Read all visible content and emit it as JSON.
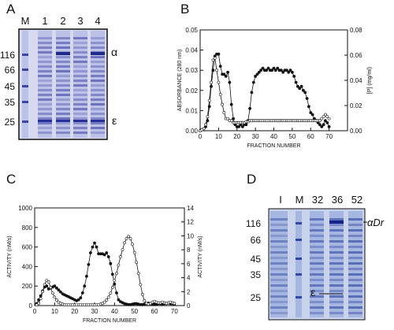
{
  "panels": {
    "A": {
      "letter": "A",
      "lanes": [
        "M",
        "1",
        "2",
        "3",
        "4"
      ],
      "markers": [
        "116",
        "66",
        "45",
        "35",
        "25"
      ],
      "bands": {
        "alpha": "α",
        "epsilon": "ε"
      }
    },
    "B": {
      "letter": "B"
    },
    "C": {
      "letter": "C"
    },
    "D": {
      "letter": "D",
      "lanes": [
        "I",
        "M",
        "32",
        "36",
        "52"
      ],
      "markers": [
        "116",
        "66",
        "45",
        "35",
        "25"
      ],
      "bands": {
        "alpha": "αDr",
        "epsilon": "ε"
      }
    }
  },
  "chart_data": [
    {
      "panel": "B",
      "type": "line",
      "xlabel": "FRACTION NUMBER",
      "ylabel": "ABSORBANCE (280 nm)",
      "ylabel2": "[P] (mg/ml)",
      "xlim": [
        0,
        80
      ],
      "xticks": [
        0,
        10,
        20,
        30,
        40,
        50,
        60,
        70
      ],
      "ylim": [
        0,
        0.05
      ],
      "yticks": [
        "0.00",
        "0.01",
        "0.02",
        "0.03",
        "0.04",
        "0.05"
      ],
      "ylim2": [
        0,
        0.08
      ],
      "yticks2": [
        "0.00",
        "0.02",
        "0.04",
        "0.06",
        "0.08"
      ],
      "series": [
        {
          "marker": "filled-circle",
          "axis": "left",
          "x": [
            0,
            1,
            2,
            3,
            4,
            5,
            6,
            7,
            8,
            9,
            10,
            11,
            12,
            13,
            14,
            15,
            16,
            17,
            18,
            19,
            20,
            21,
            22,
            23,
            24,
            25,
            26,
            27,
            28,
            29,
            30,
            31,
            32,
            33,
            34,
            35,
            36,
            37,
            38,
            39,
            40,
            41,
            42,
            43,
            44,
            45,
            46,
            47,
            48,
            49,
            50,
            51,
            52,
            53,
            54,
            55,
            56,
            57,
            58,
            59,
            60,
            61,
            62,
            63,
            64,
            65,
            66,
            67,
            68,
            69,
            70
          ],
          "y": [
            0.0,
            0.0005,
            0.001,
            0.002,
            0.005,
            0.012,
            0.022,
            0.03,
            0.037,
            0.038,
            0.038,
            0.032,
            0.028,
            0.028,
            0.027,
            0.029,
            0.024,
            0.013,
            0.006,
            0.003,
            0.002,
            0.002,
            0.003,
            0.002,
            0.003,
            0.003,
            0.005,
            0.011,
            0.019,
            0.024,
            0.027,
            0.028,
            0.029,
            0.03,
            0.031,
            0.03,
            0.03,
            0.031,
            0.03,
            0.03,
            0.031,
            0.03,
            0.031,
            0.03,
            0.03,
            0.029,
            0.03,
            0.03,
            0.029,
            0.03,
            0.029,
            0.027,
            0.024,
            0.022,
            0.021,
            0.022,
            0.02,
            0.019,
            0.016,
            0.012,
            0.009,
            0.008,
            0.006,
            0.005,
            0.004,
            0.003,
            0.002,
            0.003,
            0.005,
            0.004,
            0.002
          ]
        },
        {
          "marker": "open-circle",
          "axis": "left",
          "x": [
            0,
            1,
            2,
            3,
            4,
            5,
            6,
            7,
            8,
            9,
            10,
            11,
            12,
            13,
            14,
            15,
            16,
            17,
            18,
            19,
            20,
            21,
            22,
            23,
            24,
            25,
            26,
            27,
            28,
            29,
            30,
            31,
            32,
            33,
            34,
            35,
            36,
            37,
            38,
            39,
            40,
            41,
            42,
            43,
            44,
            45,
            46,
            47,
            48,
            49,
            50,
            51,
            52,
            53,
            54,
            55,
            56,
            57,
            58,
            59,
            60,
            61,
            62,
            63,
            64,
            65,
            66,
            67,
            68,
            69,
            70
          ],
          "y": [
            0.0,
            0.0005,
            0.001,
            0.003,
            0.007,
            0.015,
            0.024,
            0.035,
            0.036,
            0.03,
            0.024,
            0.018,
            0.013,
            0.009,
            0.006,
            0.006,
            0.005,
            0.005,
            0.004,
            0.004,
            0.004,
            0.004,
            0.004,
            0.004,
            0.004,
            0.0045,
            0.0045,
            0.005,
            0.005,
            0.005,
            0.005,
            0.005,
            0.005,
            0.005,
            0.005,
            0.005,
            0.005,
            0.005,
            0.005,
            0.005,
            0.005,
            0.005,
            0.005,
            0.005,
            0.005,
            0.005,
            0.005,
            0.005,
            0.005,
            0.005,
            0.005,
            0.005,
            0.005,
            0.005,
            0.005,
            0.005,
            0.005,
            0.005,
            0.005,
            0.005,
            0.005,
            0.005,
            0.005,
            0.005,
            0.005,
            0.005,
            0.006,
            0.007,
            0.008,
            0.007,
            0.006
          ]
        }
      ]
    },
    {
      "panel": "C",
      "type": "line",
      "xlabel": "FRACTION NUMBER",
      "ylabel": "ACTIVITY (nM/s)",
      "ylabel2": "ACTIVITY (nM/s)",
      "xlim": [
        0,
        75
      ],
      "xticks": [
        0,
        10,
        20,
        30,
        40,
        50,
        60,
        70
      ],
      "ylim": [
        0,
        1000
      ],
      "yticks": [
        "0",
        "200",
        "400",
        "600",
        "800",
        "1000"
      ],
      "ylim2": [
        0,
        14
      ],
      "yticks2": [
        "0",
        "2",
        "4",
        "6",
        "8",
        "10",
        "12",
        "14"
      ],
      "series": [
        {
          "marker": "filled-circle",
          "axis": "left",
          "x": [
            1,
            2,
            3,
            4,
            5,
            6,
            7,
            8,
            9,
            10,
            11,
            12,
            13,
            14,
            15,
            16,
            17,
            18,
            19,
            20,
            21,
            22,
            23,
            24,
            25,
            26,
            27,
            28,
            29,
            30,
            31,
            32,
            33,
            34,
            35,
            36,
            37,
            38,
            39,
            40,
            41,
            42,
            43,
            44,
            45,
            46,
            47,
            48,
            49,
            50,
            51,
            52,
            53,
            54,
            55,
            56,
            57,
            58,
            59,
            60,
            61,
            62,
            63,
            64,
            65,
            66,
            67,
            68,
            69,
            70
          ],
          "y": [
            20,
            60,
            100,
            150,
            190,
            200,
            170,
            180,
            190,
            200,
            180,
            160,
            140,
            120,
            110,
            100,
            90,
            80,
            70,
            60,
            50,
            60,
            80,
            130,
            200,
            300,
            420,
            540,
            600,
            640,
            600,
            530,
            530,
            530,
            520,
            540,
            500,
            430,
            320,
            220,
            130,
            60,
            40,
            30,
            20,
            15,
            10,
            10,
            15,
            20,
            20,
            15,
            10,
            10,
            15,
            20,
            25,
            20,
            15,
            10,
            15,
            20,
            20,
            15,
            20,
            20,
            25,
            20,
            20,
            15
          ]
        },
        {
          "marker": "open-circle",
          "axis": "right",
          "x": [
            1,
            2,
            3,
            4,
            5,
            6,
            7,
            8,
            9,
            10,
            11,
            12,
            13,
            14,
            15,
            16,
            17,
            18,
            19,
            20,
            21,
            22,
            23,
            24,
            25,
            26,
            27,
            28,
            29,
            30,
            31,
            32,
            33,
            34,
            35,
            36,
            37,
            38,
            39,
            40,
            41,
            42,
            43,
            44,
            45,
            46,
            47,
            48,
            49,
            50,
            51,
            52,
            53,
            54,
            55,
            56,
            57,
            58,
            59,
            60,
            61,
            62,
            63,
            64,
            65,
            66,
            67,
            68,
            69,
            70
          ],
          "y": [
            0.1,
            0.3,
            1.0,
            2.0,
            3.0,
            3.6,
            3.4,
            2.6,
            1.8,
            1.2,
            0.8,
            0.5,
            0.3,
            0.2,
            0.1,
            0.1,
            0.1,
            0.1,
            0.1,
            0.1,
            0.1,
            0.1,
            0.1,
            0.1,
            0.1,
            0.1,
            0.1,
            0.1,
            0.1,
            0.1,
            0.1,
            0.1,
            0.2,
            0.3,
            0.5,
            0.8,
            1.2,
            1.8,
            2.6,
            3.6,
            4.6,
            5.8,
            7.0,
            8.0,
            9.0,
            9.6,
            9.9,
            9.6,
            8.8,
            7.6,
            6.2,
            4.6,
            3.0,
            1.6,
            0.7,
            0.3,
            0.2,
            0.3,
            0.5,
            0.6,
            0.5,
            0.4,
            0.4,
            0.5,
            0.4,
            0.3,
            0.4,
            0.5,
            0.4,
            0.3
          ]
        }
      ]
    }
  ]
}
